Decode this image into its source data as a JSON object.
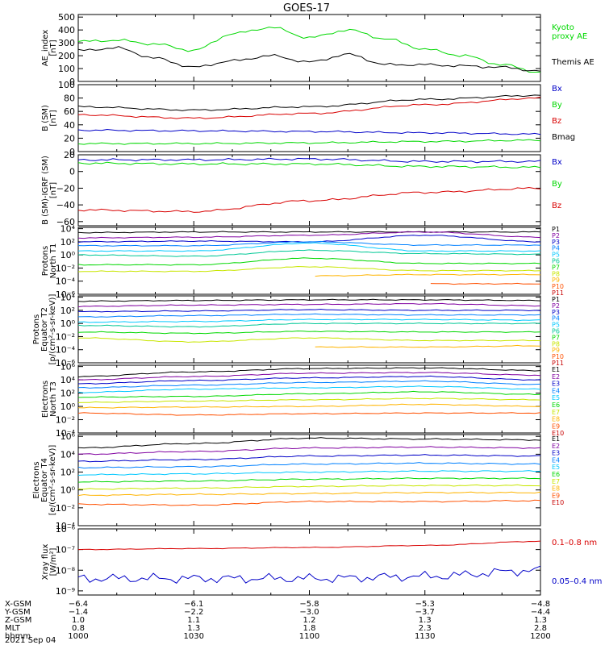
{
  "title": "GOES-17",
  "date_label": "2021 Sep 04",
  "colors": {
    "black": "#000000",
    "red": "#d80000",
    "blue": "#0000c8",
    "green": "#00d800"
  },
  "panels": [
    {
      "ylabel": [
        "AE_index",
        "[nT]"
      ],
      "legend": [
        {
          "text": "Kyoto",
          "color": "#00d800"
        },
        {
          "text": "proxy AE",
          "color": "#00d800"
        },
        {
          "text": "Themis AE",
          "color": "#000000"
        }
      ],
      "ticks": [
        {
          "label": "500",
          "value": 500
        },
        {
          "label": "400",
          "value": 400
        },
        {
          "label": "300",
          "value": 300
        },
        {
          "label": "200",
          "value": 200
        },
        {
          "label": "100",
          "value": 100
        },
        {
          "label": "0",
          "value": 0
        }
      ]
    },
    {
      "ylabel": [
        "B (SM)",
        "[nT]"
      ],
      "legend": [
        {
          "text": "Bx",
          "color": "#0000c8"
        },
        {
          "text": "By",
          "color": "#00d800"
        },
        {
          "text": "Bz",
          "color": "#d80000"
        },
        {
          "text": "Bmag",
          "color": "#000000"
        }
      ],
      "ticks": [
        {
          "label": "100",
          "value": 100
        },
        {
          "label": "80",
          "value": 80
        },
        {
          "label": "60",
          "value": 60
        },
        {
          "label": "40",
          "value": 40
        },
        {
          "label": "20",
          "value": 20
        },
        {
          "label": "0",
          "value": 0
        }
      ]
    },
    {
      "ylabel": [
        "B (SM)-IGRF (SM)",
        "[nT]"
      ],
      "legend": [
        {
          "text": "Bx",
          "color": "#0000c8"
        },
        {
          "text": "By",
          "color": "#00d800"
        },
        {
          "text": "Bz",
          "color": "#d80000"
        }
      ],
      "ticks": [
        {
          "label": "20",
          "value": 20
        },
        {
          "label": "0",
          "value": 0
        },
        {
          "label": "−20",
          "value": -20
        },
        {
          "label": "−40",
          "value": -40
        },
        {
          "label": "−60",
          "value": -60
        }
      ]
    },
    {
      "ylabel": [
        "Protons",
        "North T1"
      ],
      "legend": [
        {
          "text": "P1",
          "color": "#000000"
        },
        {
          "text": "P2",
          "color": "#8000a0"
        },
        {
          "text": "P3",
          "color": "#0000c8"
        },
        {
          "text": "P4",
          "color": "#0080ff"
        },
        {
          "text": "P5",
          "color": "#00c8ff"
        },
        {
          "text": "P6",
          "color": "#00c896"
        },
        {
          "text": "P7",
          "color": "#00d800"
        },
        {
          "text": "P8",
          "color": "#c8e600"
        },
        {
          "text": "P9",
          "color": "#ffb400"
        },
        {
          "text": "P10",
          "color": "#ff5000"
        },
        {
          "text": "P11",
          "color": "#c80000"
        }
      ],
      "ticks": [
        {
          "label": "10⁴",
          "value": 4
        },
        {
          "label": "10²",
          "value": 2
        },
        {
          "label": "10⁰",
          "value": 0
        },
        {
          "label": "10⁻²",
          "value": -2
        },
        {
          "label": "10⁻⁴",
          "value": -4
        },
        {
          "label": "10⁻⁶",
          "value": -6
        }
      ]
    },
    {
      "ylabel": [
        "Protons",
        "Equator T2",
        "[p/(cm²-s-sr-keV)]"
      ],
      "legend": [
        {
          "text": "P1",
          "color": "#000000"
        },
        {
          "text": "P2",
          "color": "#8000a0"
        },
        {
          "text": "P3",
          "color": "#0000c8"
        },
        {
          "text": "P4",
          "color": "#0080ff"
        },
        {
          "text": "P5",
          "color": "#00c8ff"
        },
        {
          "text": "P6",
          "color": "#00c896"
        },
        {
          "text": "P7",
          "color": "#00d800"
        },
        {
          "text": "P8",
          "color": "#c8e600"
        },
        {
          "text": "P9",
          "color": "#ffb400"
        },
        {
          "text": "P10",
          "color": "#ff5000"
        },
        {
          "text": "P11",
          "color": "#c80000"
        }
      ],
      "ticks": [
        {
          "label": "10⁴",
          "value": 4
        },
        {
          "label": "10²",
          "value": 2
        },
        {
          "label": "10⁰",
          "value": 0
        },
        {
          "label": "10⁻²",
          "value": -2
        },
        {
          "label": "10⁻⁴",
          "value": -4
        },
        {
          "label": "10⁻⁶",
          "value": -6
        }
      ]
    },
    {
      "ylabel": [
        "Electrons",
        "North T3"
      ],
      "legend": [
        {
          "text": "E1",
          "color": "#000000"
        },
        {
          "text": "E2",
          "color": "#8000a0"
        },
        {
          "text": "E3",
          "color": "#0000c8"
        },
        {
          "text": "E4",
          "color": "#0080ff"
        },
        {
          "text": "E5",
          "color": "#00c8ff"
        },
        {
          "text": "E6",
          "color": "#00d800"
        },
        {
          "text": "E7",
          "color": "#c8e600"
        },
        {
          "text": "E8",
          "color": "#ffb400"
        },
        {
          "text": "E9",
          "color": "#ff5000"
        },
        {
          "text": "E10",
          "color": "#c80000"
        }
      ],
      "ticks": [
        {
          "label": "10⁶",
          "value": 6
        },
        {
          "label": "10⁴",
          "value": 4
        },
        {
          "label": "10²",
          "value": 2
        },
        {
          "label": "10⁰",
          "value": 0
        },
        {
          "label": "10⁻²",
          "value": -2
        },
        {
          "label": "10⁻⁴",
          "value": -4
        }
      ]
    },
    {
      "ylabel": [
        "Electrons",
        "Equator T4",
        "[e/(cm²-s-sr-keV)]"
      ],
      "legend": [
        {
          "text": "E1",
          "color": "#000000"
        },
        {
          "text": "E2",
          "color": "#8000a0"
        },
        {
          "text": "E3",
          "color": "#0000c8"
        },
        {
          "text": "E4",
          "color": "#0080ff"
        },
        {
          "text": "E5",
          "color": "#00c8ff"
        },
        {
          "text": "E6",
          "color": "#00d800"
        },
        {
          "text": "E7",
          "color": "#c8e600"
        },
        {
          "text": "E8",
          "color": "#ffb400"
        },
        {
          "text": "E9",
          "color": "#ff5000"
        },
        {
          "text": "E10",
          "color": "#c80000"
        }
      ],
      "ticks": [
        {
          "label": "10⁶",
          "value": 6
        },
        {
          "label": "10⁴",
          "value": 4
        },
        {
          "label": "10²",
          "value": 2
        },
        {
          "label": "10⁰",
          "value": 0
        },
        {
          "label": "10⁻²",
          "value": -2
        },
        {
          "label": "10⁻⁴",
          "value": -4
        }
      ]
    },
    {
      "ylabel": [
        "Xray flux",
        "[W/m²]"
      ],
      "legend": [
        {
          "text": "0.1–0.8 nm",
          "color": "#d80000"
        },
        {
          "text": "0.05–0.4 nm",
          "color": "#0000c8"
        }
      ],
      "ticks": [
        {
          "label": "10⁻⁶",
          "value": -6
        },
        {
          "label": "10⁻⁷",
          "value": -7
        },
        {
          "label": "10⁻⁸",
          "value": -8
        },
        {
          "label": "10⁻⁹",
          "value": -9
        }
      ]
    }
  ],
  "footer": {
    "row_labels": [
      "X-GSM",
      "Y-GSM",
      "Z-GSM",
      "MLT",
      "hhmm"
    ],
    "columns": [
      {
        "values": [
          "−6.4",
          "−1.4",
          "1.0",
          "0.8",
          "1000"
        ]
      },
      {
        "values": [
          "−6.1",
          "−2.2",
          "1.1",
          "1.3",
          "1030"
        ]
      },
      {
        "values": [
          "−5.8",
          "−3.0",
          "1.2",
          "1.8",
          "1100"
        ]
      },
      {
        "values": [
          "−5.3",
          "−3.7",
          "1.3",
          "2.3",
          "1130"
        ]
      },
      {
        "values": [
          "−4.8",
          "−4.4",
          "1.3",
          "2.8",
          "1200"
        ]
      }
    ]
  },
  "chart_data": [
    {
      "type": "line",
      "ylabel": "AE_index [nT]",
      "ylim": [
        0,
        520
      ],
      "x": [
        1000,
        1010,
        1020,
        1030,
        1040,
        1050,
        1100,
        1110,
        1120,
        1130,
        1140,
        1150,
        1200
      ],
      "series": [
        {
          "name": "Kyoto proxy AE",
          "color": "#00d800",
          "values": [
            310,
            320,
            290,
            240,
            370,
            420,
            340,
            400,
            330,
            250,
            200,
            130,
            70
          ]
        },
        {
          "name": "Themis AE",
          "color": "#000000",
          "values": [
            240,
            260,
            180,
            110,
            160,
            200,
            150,
            210,
            130,
            130,
            120,
            110,
            80
          ]
        }
      ]
    },
    {
      "type": "line",
      "ylabel": "B (SM) [nT]",
      "ylim": [
        0,
        100
      ],
      "x": [
        1000,
        1030,
        1100,
        1130,
        1200
      ],
      "series": [
        {
          "name": "Bmag",
          "color": "#000000",
          "values": [
            67,
            62,
            67,
            78,
            84
          ]
        },
        {
          "name": "Bz",
          "color": "#d80000",
          "values": [
            55,
            50,
            57,
            70,
            80
          ]
        },
        {
          "name": "Bx",
          "color": "#0000c8",
          "values": [
            32,
            31,
            30,
            28,
            26
          ]
        },
        {
          "name": "By",
          "color": "#00d800",
          "values": [
            12,
            12,
            13,
            15,
            17
          ]
        }
      ]
    },
    {
      "type": "line",
      "ylabel": "B (SM)-IGRF (SM) [nT]",
      "ylim": [
        -65,
        20
      ],
      "x": [
        1000,
        1030,
        1100,
        1130,
        1200
      ],
      "series": [
        {
          "name": "Bx",
          "color": "#0000c8",
          "values": [
            14,
            14,
            15,
            12,
            12
          ]
        },
        {
          "name": "By",
          "color": "#00d800",
          "values": [
            10,
            9,
            9,
            6,
            5
          ]
        },
        {
          "name": "Bz",
          "color": "#d80000",
          "values": [
            -46,
            -48,
            -35,
            -25,
            -20
          ]
        }
      ]
    },
    {
      "type": "line",
      "ylabel": "Protons North T1 (log10 flux)",
      "ylim": [
        -6,
        4
      ],
      "x": [
        1000,
        1030,
        1100,
        1130,
        1200
      ],
      "series": [
        {
          "name": "P1",
          "values": [
            3.4,
            3.5,
            3.5,
            3.5,
            3.5
          ]
        },
        {
          "name": "P2",
          "values": [
            2.6,
            2.7,
            3.0,
            3.5,
            2.7
          ]
        },
        {
          "name": "P3",
          "values": [
            2.0,
            2.1,
            2.0,
            3.0,
            2.0
          ]
        },
        {
          "name": "P4",
          "values": [
            1.4,
            1.4,
            2.0,
            1.5,
            1.5
          ]
        },
        {
          "name": "P5",
          "values": [
            0.6,
            0.6,
            1.8,
            0.6,
            0.6
          ]
        },
        {
          "name": "P6",
          "values": [
            0.0,
            -0.2,
            0.7,
            0.2,
            0.1
          ]
        },
        {
          "name": "P7",
          "values": [
            -1.5,
            -1.5,
            -0.5,
            -1.3,
            -1.3
          ]
        },
        {
          "name": "P8",
          "values": [
            -2.5,
            -2.5,
            -1.8,
            -2.4,
            -2.4
          ]
        },
        {
          "name": "P9",
          "values": [
            null,
            null,
            -3.2,
            -3.0,
            -3.0
          ]
        },
        {
          "name": "P10",
          "values": [
            null,
            null,
            null,
            -4.4,
            -4.4
          ]
        }
      ]
    },
    {
      "type": "line",
      "ylabel": "Protons Equator T2 (log10 flux)",
      "ylim": [
        -6,
        4
      ],
      "x": [
        1000,
        1030,
        1100,
        1130,
        1200
      ],
      "series": [
        {
          "name": "P1",
          "values": [
            3.4,
            3.5,
            3.6,
            3.6,
            3.5
          ]
        },
        {
          "name": "P2",
          "values": [
            2.6,
            2.8,
            2.9,
            3.0,
            2.7
          ]
        },
        {
          "name": "P3",
          "values": [
            1.8,
            1.9,
            2.1,
            2.0,
            2.0
          ]
        },
        {
          "name": "P4",
          "values": [
            1.0,
            1.2,
            1.4,
            1.3,
            1.3
          ]
        },
        {
          "name": "P5",
          "values": [
            0.2,
            0.3,
            0.6,
            0.6,
            0.5
          ]
        },
        {
          "name": "P6",
          "values": [
            -0.3,
            -0.5,
            0.0,
            0.0,
            0.0
          ]
        },
        {
          "name": "P7",
          "values": [
            -1.3,
            -1.5,
            -1.2,
            -1.3,
            -1.3
          ]
        },
        {
          "name": "P8",
          "values": [
            -2.2,
            -2.8,
            -2.2,
            -2.6,
            -2.6
          ]
        },
        {
          "name": "P9",
          "values": [
            null,
            null,
            -3.6,
            -3.6,
            -3.4
          ]
        }
      ]
    },
    {
      "type": "line",
      "ylabel": "Electrons North T3 (log10 flux)",
      "ylim": [
        -4,
        6
      ],
      "x": [
        1000,
        1030,
        1100,
        1130,
        1200
      ],
      "series": [
        {
          "name": "E1",
          "values": [
            4.5,
            5.2,
            5.7,
            5.8,
            5.4
          ]
        },
        {
          "name": "E2",
          "values": [
            4.0,
            4.5,
            5.0,
            5.1,
            4.7
          ]
        },
        {
          "name": "E3",
          "values": [
            3.4,
            3.9,
            4.3,
            4.5,
            4.0
          ]
        },
        {
          "name": "E4",
          "values": [
            2.8,
            3.2,
            3.6,
            3.8,
            3.3
          ]
        },
        {
          "name": "E5",
          "values": [
            2.1,
            2.6,
            2.8,
            3.0,
            2.6
          ]
        },
        {
          "name": "E6",
          "values": [
            1.4,
            1.5,
            1.9,
            2.2,
            1.8
          ]
        },
        {
          "name": "E7",
          "values": [
            0.6,
            0.8,
            1.0,
            1.2,
            1.0
          ]
        },
        {
          "name": "E8",
          "values": [
            -0.2,
            -0.1,
            0.0,
            0.3,
            0.0
          ]
        },
        {
          "name": "E9",
          "values": [
            -1.0,
            -1.3,
            -1.1,
            -1.0,
            -1.0
          ]
        }
      ]
    },
    {
      "type": "line",
      "ylabel": "Electrons Equator T4 (log10 flux)",
      "ylim": [
        -4,
        6
      ],
      "x": [
        1000,
        1030,
        1100,
        1130,
        1200
      ],
      "series": [
        {
          "name": "E1",
          "values": [
            4.7,
            5.2,
            5.8,
            5.7,
            5.6
          ]
        },
        {
          "name": "E2",
          "values": [
            4.0,
            4.3,
            4.7,
            4.8,
            4.7
          ]
        },
        {
          "name": "E3",
          "values": [
            3.2,
            3.4,
            3.8,
            3.9,
            3.8
          ]
        },
        {
          "name": "E4",
          "values": [
            2.5,
            2.6,
            2.9,
            3.0,
            2.9
          ]
        },
        {
          "name": "E5",
          "values": [
            1.7,
            1.8,
            2.0,
            2.1,
            2.1
          ]
        },
        {
          "name": "E6",
          "values": [
            0.9,
            1.0,
            1.2,
            1.3,
            1.3
          ]
        },
        {
          "name": "E7",
          "values": [
            0.1,
            0.2,
            0.4,
            0.5,
            0.5
          ]
        },
        {
          "name": "E8",
          "values": [
            -0.6,
            -0.5,
            -0.4,
            -0.3,
            -0.3
          ]
        },
        {
          "name": "E9",
          "values": [
            -1.6,
            -1.7,
            -1.3,
            -1.3,
            -1.2
          ]
        }
      ]
    },
    {
      "type": "line",
      "ylabel": "Xray flux [W/m²] (log10)",
      "ylim": [
        -9.2,
        -6.0
      ],
      "x": [
        1000,
        1030,
        1100,
        1130,
        1200
      ],
      "series": [
        {
          "name": "0.1–0.8 nm",
          "color": "#d80000",
          "values": [
            -7.0,
            -6.95,
            -6.9,
            -6.8,
            -6.6
          ]
        },
        {
          "name": "0.05–0.4 nm",
          "color": "#0000c8",
          "values": [
            -8.4,
            -8.4,
            -8.4,
            -8.3,
            -8.0
          ]
        }
      ]
    }
  ]
}
